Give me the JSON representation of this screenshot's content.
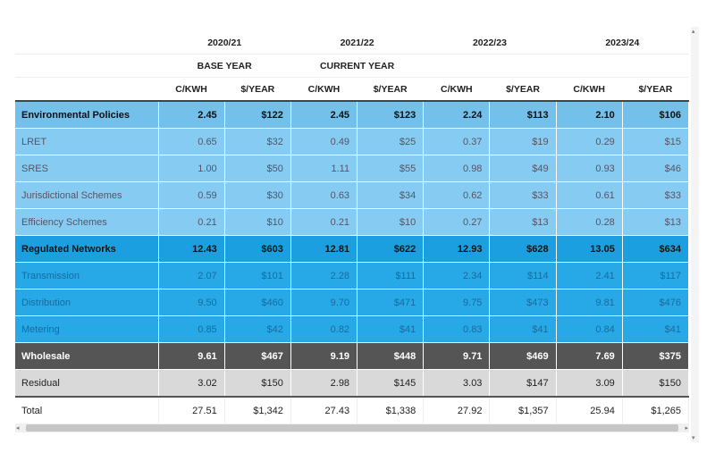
{
  "table": {
    "years": [
      "2020/21",
      "2021/22",
      "2022/23",
      "2023/24"
    ],
    "periods": [
      "BASE YEAR",
      "CURRENT YEAR"
    ],
    "columns": [
      "C/KWH",
      "$/YEAR",
      "C/KWH",
      "$/YEAR",
      "C/KWH",
      "$/YEAR",
      "C/KWH",
      "$/YEAR"
    ],
    "rows": [
      {
        "label": "Environmental Policies",
        "cells": [
          "2.45",
          "$122",
          "2.45",
          "$123",
          "2.24",
          "$113",
          "2.10",
          "$106"
        ]
      },
      {
        "label": "LRET",
        "cells": [
          "0.65",
          "$32",
          "0.49",
          "$25",
          "0.37",
          "$19",
          "0.29",
          "$15"
        ]
      },
      {
        "label": "SRES",
        "cells": [
          "1.00",
          "$50",
          "1.11",
          "$55",
          "0.98",
          "$49",
          "0.93",
          "$46"
        ]
      },
      {
        "label": "Jurisdictional Schemes",
        "cells": [
          "0.59",
          "$30",
          "0.63",
          "$34",
          "0.62",
          "$33",
          "0.61",
          "$33"
        ]
      },
      {
        "label": "Efficiency Schemes",
        "cells": [
          "0.21",
          "$10",
          "0.21",
          "$10",
          "0.27",
          "$13",
          "0.28",
          "$13"
        ]
      },
      {
        "label": "Regulated Networks",
        "cells": [
          "12.43",
          "$603",
          "12.81",
          "$622",
          "12.93",
          "$628",
          "13.05",
          "$634"
        ]
      },
      {
        "label": "Transmission",
        "cells": [
          "2.07",
          "$101",
          "2.28",
          "$111",
          "2.34",
          "$114",
          "2.41",
          "$117"
        ]
      },
      {
        "label": "Distribution",
        "cells": [
          "9.50",
          "$460",
          "9.70",
          "$471",
          "9.75",
          "$473",
          "9.81",
          "$476"
        ]
      },
      {
        "label": "Metering",
        "cells": [
          "0.85",
          "$42",
          "0.82",
          "$41",
          "0.83",
          "$41",
          "0.84",
          "$41"
        ]
      },
      {
        "label": "Wholesale",
        "cells": [
          "9.61",
          "$467",
          "9.19",
          "$448",
          "9.71",
          "$469",
          "7.69",
          "$375"
        ]
      },
      {
        "label": "Residual",
        "cells": [
          "3.02",
          "$150",
          "2.98",
          "$145",
          "3.03",
          "$147",
          "3.09",
          "$150"
        ]
      },
      {
        "label": "Total",
        "cells": [
          "27.51",
          "$1,342",
          "27.43",
          "$1,338",
          "27.92",
          "$1,357",
          "25.94",
          "$1,265"
        ]
      }
    ]
  }
}
